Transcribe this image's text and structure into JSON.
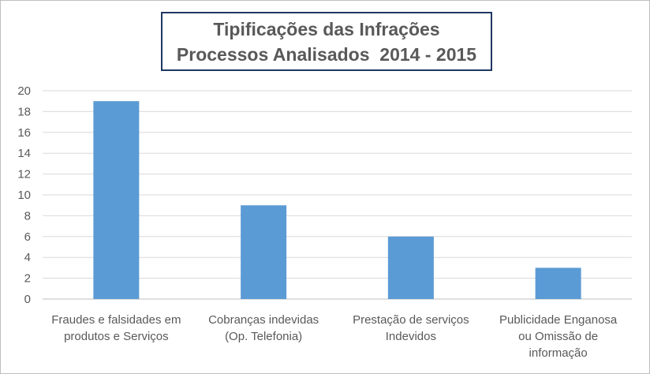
{
  "chart_data": {
    "type": "bar",
    "title": [
      "Tipificações das Infrações",
      "Processos Analisados  2014 - 2015"
    ],
    "categories": [
      [
        "Fraudes e falsidades em",
        "produtos e Serviços"
      ],
      [
        "Cobranças indevidas",
        "(Op. Telefonia)"
      ],
      [
        "Prestação de serviços",
        "Indevidos"
      ],
      [
        "Publicidade Enganosa",
        "ou Omissão de",
        "informação"
      ]
    ],
    "values": [
      19,
      9,
      6,
      3
    ],
    "ylim": [
      0,
      20
    ],
    "yticks": [
      0,
      2,
      4,
      6,
      8,
      10,
      12,
      14,
      16,
      18,
      20
    ],
    "grid": true,
    "bar_color": "#5b9bd5",
    "grid_color": "#d9d9d9",
    "axis_color": "#bfbfbf"
  }
}
